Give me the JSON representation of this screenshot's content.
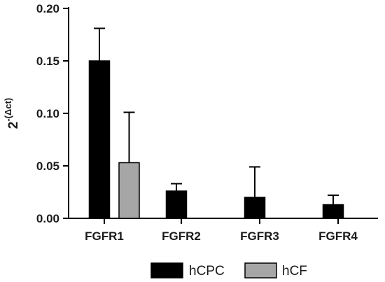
{
  "chart_data": {
    "type": "bar",
    "categories": [
      "FGFR1",
      "FGFR2",
      "FGFR3",
      "FGFR4"
    ],
    "series": [
      {
        "name": "hCPC",
        "color": "#000000",
        "values": [
          0.15,
          0.026,
          0.02,
          0.013
        ],
        "errors": [
          0.031,
          0.007,
          0.029,
          0.009
        ]
      },
      {
        "name": "hCF",
        "color": "#a6a6a6",
        "values": [
          0.053,
          null,
          null,
          null
        ],
        "errors": [
          0.048,
          null,
          null,
          null
        ]
      }
    ],
    "ylabel": {
      "base": "2",
      "sup": "-(Δct)"
    },
    "ylim": [
      0,
      0.2
    ],
    "yticks": [
      "0.00",
      "0.05",
      "0.10",
      "0.15",
      "0.20"
    ],
    "ytick_values": [
      0,
      0.05,
      0.1,
      0.15,
      0.2
    ],
    "grid": false,
    "legend_position": "bottom"
  }
}
